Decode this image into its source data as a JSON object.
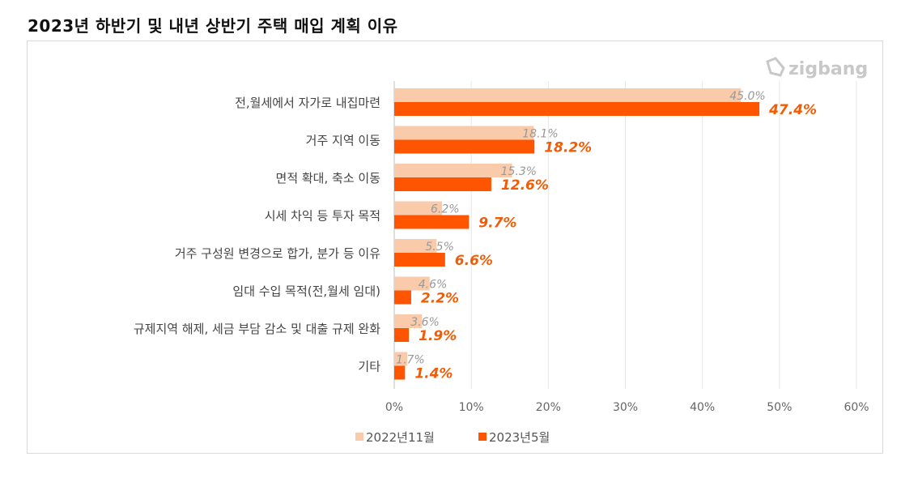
{
  "title": "2023년 하반기 및 내년 상반기 주택 매입 계획 이유",
  "logo": "zigbang",
  "colors": {
    "series1": "#F9CBAA",
    "series2": "#FF5500",
    "label1": "#999999",
    "label2": "#F25C05"
  },
  "chart_data": {
    "type": "bar",
    "orientation": "horizontal",
    "categories": [
      "전,월세에서 자가로 내집마련",
      "거주 지역 이동",
      "면적 확대, 축소 이동",
      "시세 차익 등 투자 목적",
      "거주 구성원 변경으로 합가, 분가 등 이유",
      "임대 수입 목적(전,월세 임대)",
      "규제지역 해제, 세금 부담 감소 및 대출 규제 완화",
      "기타"
    ],
    "series": [
      {
        "name": "2022년11월",
        "values": [
          45.0,
          18.1,
          15.3,
          6.2,
          5.5,
          4.6,
          3.6,
          1.7
        ]
      },
      {
        "name": "2023년5월",
        "values": [
          47.4,
          18.2,
          12.6,
          9.7,
          6.6,
          2.2,
          1.9,
          1.4
        ]
      }
    ],
    "xlim": [
      0,
      60
    ],
    "xticks": [
      "0%",
      "10%",
      "20%",
      "30%",
      "40%",
      "50%",
      "60%"
    ],
    "grid": true,
    "legend": "bottom",
    "title": "2023년 하반기 및 내년 상반기 주택 매입 계획 이유"
  }
}
